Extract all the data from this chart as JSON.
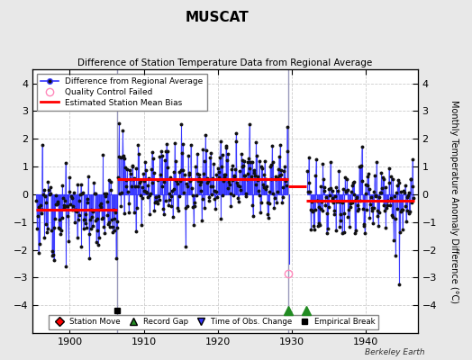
{
  "title": "MUSCAT",
  "subtitle": "Difference of Station Temperature Data from Regional Average",
  "ylabel": "Monthly Temperature Anomaly Difference (°C)",
  "xlim": [
    1895,
    1947
  ],
  "ylim": [
    -5,
    4.5
  ],
  "yticks": [
    -4,
    -3,
    -2,
    -1,
    0,
    1,
    2,
    3,
    4
  ],
  "xticks": [
    1900,
    1910,
    1920,
    1930,
    1940
  ],
  "outer_bg": "#e8e8e8",
  "plot_bg": "#ffffff",
  "grid_color": "#cccccc",
  "data_color": "#3333ff",
  "bias_color": "#ff0000",
  "vline_color": "#9999bb",
  "empirical_break_x": 1906.42,
  "empirical_break_y": -4.2,
  "record_gap_x1": 1929.5,
  "record_gap_x2": 1932.0,
  "event_marker_y": -4.2,
  "vertical_line_x1": 1906.42,
  "vertical_line_x2": 1929.5,
  "segments": [
    {
      "x_start": 1895.5,
      "x_end": 1906.42,
      "bias": -0.55
    },
    {
      "x_start": 1906.42,
      "x_end": 1929.5,
      "bias": 0.55
    },
    {
      "x_start": 1929.5,
      "x_end": 1932.0,
      "bias": 0.3
    },
    {
      "x_start": 1932.0,
      "x_end": 1946.5,
      "bias": -0.22
    }
  ],
  "qc_fail_x": 1929.5,
  "qc_fail_y": -2.85,
  "seg1_noise_std": 0.65,
  "seg1_seasonal": 0.45,
  "seg2_noise_std": 0.65,
  "seg2_seasonal": 0.55,
  "seg4_noise_std": 0.55,
  "seg4_seasonal": 0.45,
  "seed": 12
}
